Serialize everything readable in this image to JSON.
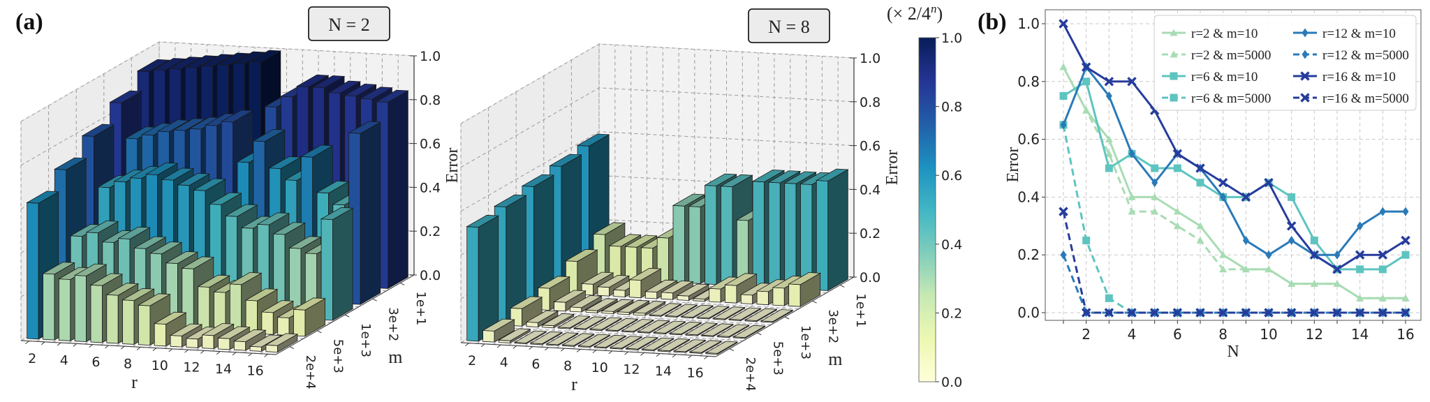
{
  "figure": {
    "panel_a_label": "(a)",
    "panel_b_label": "(b)",
    "colorbar": {
      "title": "(× 2/4",
      "title_sup": "n",
      "title_close": ")",
      "ticks": [
        "0.0",
        "0.2",
        "0.4",
        "0.6",
        "0.8",
        "1.0"
      ],
      "range": [
        0,
        1
      ],
      "colormap": [
        "#ffffd9",
        "#edf8b1",
        "#c7e9b4",
        "#7fcdbb",
        "#41b6c4",
        "#1d91c0",
        "#225ea8",
        "#253494",
        "#081d58"
      ]
    }
  },
  "chart_data": [
    {
      "type": "bar3d",
      "title": "N = 2",
      "xlabel": "r",
      "ylabel": "m",
      "zlabel": "Error",
      "x_ticks": [
        "2",
        "4",
        "6",
        "8",
        "10",
        "12",
        "14",
        "16"
      ],
      "y_ticks": [
        "1e+1",
        "3e+2",
        "1e+3",
        "5e+3",
        "2e+4"
      ],
      "z_ticks": [
        "0.0",
        "0.2",
        "0.4",
        "0.6",
        "0.8",
        "1.0"
      ],
      "zlim": [
        0,
        1
      ],
      "r_values": [
        1,
        2,
        3,
        4,
        5,
        6,
        7,
        8,
        9,
        10,
        11,
        12,
        13,
        14,
        15,
        16
      ],
      "m_values": [
        "1e+1",
        "3e+2",
        "1e+3",
        "5e+3",
        "2e+4"
      ],
      "values": [
        [
          0.93,
          0.94,
          0.95,
          0.96,
          0.97,
          0.98,
          0.99,
          1.0,
          0.8,
          0.85,
          0.9,
          0.9,
          0.88,
          0.87,
          0.86,
          0.85
        ],
        [
          0.86,
          0.7,
          0.72,
          0.74,
          0.75,
          0.76,
          0.78,
          0.8,
          0.62,
          0.72,
          0.6,
          0.55,
          0.66,
          0.5,
          0.45,
          0.78
        ],
        [
          0.78,
          0.55,
          0.58,
          0.6,
          0.62,
          0.6,
          0.58,
          0.56,
          0.5,
          0.45,
          0.4,
          0.42,
          0.38,
          0.32,
          0.3,
          0.46
        ],
        [
          0.7,
          0.4,
          0.42,
          0.38,
          0.4,
          0.36,
          0.34,
          0.3,
          0.28,
          0.2,
          0.18,
          0.22,
          0.15,
          0.1,
          0.08,
          0.12
        ],
        [
          0.62,
          0.3,
          0.28,
          0.3,
          0.26,
          0.22,
          0.2,
          0.18,
          0.1,
          0.05,
          0.04,
          0.06,
          0.05,
          0.04,
          0.02,
          0.03
        ]
      ]
    },
    {
      "type": "bar3d",
      "title": "N = 8",
      "xlabel": "r",
      "ylabel": "m",
      "zlabel": "Error",
      "x_ticks": [
        "2",
        "4",
        "6",
        "8",
        "10",
        "12",
        "14",
        "16"
      ],
      "y_ticks": [
        "1e+1",
        "3e+2",
        "1e+3",
        "5e+3",
        "2e+4"
      ],
      "z_ticks": [
        "0.0",
        "0.2",
        "0.4",
        "0.6",
        "0.8",
        "1.0"
      ],
      "zlim": [
        0,
        1
      ],
      "r_values": [
        1,
        2,
        3,
        4,
        5,
        6,
        7,
        8,
        9,
        10,
        11,
        12,
        13,
        14,
        15,
        16
      ],
      "m_values": [
        "1e+1",
        "3e+2",
        "1e+3",
        "5e+3",
        "2e+4"
      ],
      "values": [
        [
          0.6,
          0.2,
          0.15,
          0.15,
          0.15,
          0.2,
          0.35,
          0.35,
          0.45,
          0.45,
          0.3,
          0.48,
          0.48,
          0.48,
          0.48,
          0.5
        ],
        [
          0.58,
          0.15,
          0.05,
          0.04,
          0.03,
          0.08,
          0.03,
          0.03,
          0.02,
          0.01,
          0.06,
          0.08,
          0.04,
          0.06,
          0.08,
          0.1
        ],
        [
          0.56,
          0.1,
          0.04,
          0.02,
          0.01,
          0.01,
          0.01,
          0.01,
          0.0,
          0.0,
          0.0,
          0.0,
          0.0,
          0.0,
          0.0,
          0.0
        ],
        [
          0.54,
          0.08,
          0.02,
          0.01,
          0.0,
          0.0,
          0.0,
          0.0,
          0.0,
          0.0,
          0.0,
          0.0,
          0.0,
          0.0,
          0.0,
          0.0
        ],
        [
          0.52,
          0.05,
          0.01,
          0.0,
          0.0,
          0.0,
          0.0,
          0.0,
          0.0,
          0.0,
          0.0,
          0.0,
          0.0,
          0.0,
          0.0,
          0.0
        ]
      ]
    },
    {
      "type": "line",
      "title": "",
      "xlabel": "N",
      "ylabel": "Error",
      "x": [
        1,
        2,
        3,
        4,
        5,
        6,
        7,
        8,
        9,
        10,
        11,
        12,
        13,
        14,
        15,
        16
      ],
      "x_ticks": [
        "2",
        "4",
        "6",
        "8",
        "10",
        "12",
        "14",
        "16"
      ],
      "y_ticks": [
        "0.0",
        "0.2",
        "0.4",
        "0.6",
        "0.8",
        "1.0"
      ],
      "xlim": [
        0.3,
        16.7
      ],
      "ylim": [
        -0.05,
        1.05
      ],
      "grid": true,
      "legend_position": "top-right",
      "series": [
        {
          "name": "r=2 & m=10",
          "style": "solid",
          "marker": "triangle",
          "color": "#a8dcb3",
          "values": [
            0.85,
            0.7,
            0.6,
            0.4,
            0.4,
            0.35,
            0.3,
            0.2,
            0.15,
            0.15,
            0.1,
            0.1,
            0.1,
            0.05,
            0.05,
            0.05
          ]
        },
        {
          "name": "r=2 & m=5000",
          "style": "dashed",
          "marker": "triangle",
          "color": "#a8dcb3",
          "values": [
            0.85,
            0.7,
            0.55,
            0.35,
            0.35,
            0.3,
            0.25,
            0.15,
            0.15,
            0.15,
            0.1,
            0.1,
            0.1,
            0.05,
            0.05,
            0.05
          ]
        },
        {
          "name": "r=6 & m=10",
          "style": "solid",
          "marker": "square",
          "color": "#5ec4c0",
          "values": [
            0.75,
            0.8,
            0.5,
            0.55,
            0.5,
            0.5,
            0.45,
            0.4,
            0.4,
            0.45,
            0.4,
            0.25,
            0.15,
            0.15,
            0.15,
            0.2
          ]
        },
        {
          "name": "r=6 & m=5000",
          "style": "dashed",
          "marker": "square",
          "color": "#5ec4c0",
          "values": [
            0.65,
            0.25,
            0.05,
            0.0,
            0.0,
            0.0,
            0.0,
            0.0,
            0.0,
            0.0,
            0.0,
            0.0,
            0.0,
            0.0,
            0.0,
            0.0
          ]
        },
        {
          "name": "r=12 & m=10",
          "style": "solid",
          "marker": "diamond",
          "color": "#2a7ab8",
          "values": [
            0.65,
            0.85,
            0.75,
            0.55,
            0.45,
            0.55,
            0.5,
            0.4,
            0.25,
            0.2,
            0.25,
            0.2,
            0.2,
            0.3,
            0.35,
            0.35
          ]
        },
        {
          "name": "r=12 & m=5000",
          "style": "dashed",
          "marker": "diamond",
          "color": "#2a7ab8",
          "values": [
            0.2,
            0.0,
            0.0,
            0.0,
            0.0,
            0.0,
            0.0,
            0.0,
            0.0,
            0.0,
            0.0,
            0.0,
            0.0,
            0.0,
            0.0,
            0.0
          ]
        },
        {
          "name": "r=16 & m=10",
          "style": "solid",
          "marker": "x",
          "color": "#263c9c",
          "values": [
            1.0,
            0.85,
            0.8,
            0.8,
            0.7,
            0.55,
            0.5,
            0.45,
            0.4,
            0.45,
            0.3,
            0.2,
            0.15,
            0.2,
            0.2,
            0.25
          ]
        },
        {
          "name": "r=16 & m=5000",
          "style": "dashed",
          "marker": "x",
          "color": "#263c9c",
          "values": [
            0.35,
            0.0,
            0.0,
            0.0,
            0.0,
            0.0,
            0.0,
            0.0,
            0.0,
            0.0,
            0.0,
            0.0,
            0.0,
            0.0,
            0.0,
            0.0
          ]
        }
      ]
    }
  ]
}
